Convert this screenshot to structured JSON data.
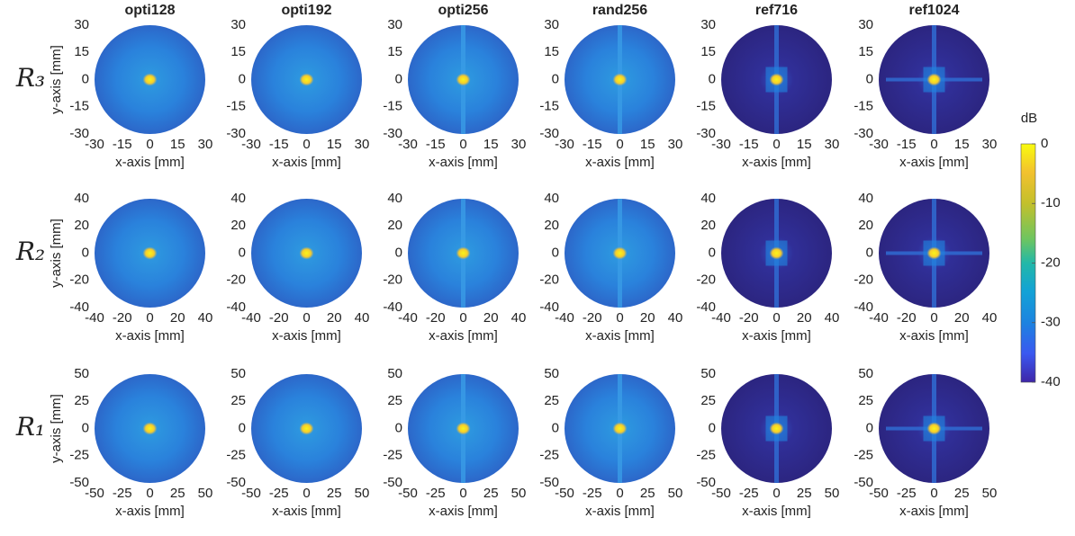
{
  "chart_data": {
    "type": "heatmap",
    "columns": [
      "opti128",
      "opti192",
      "opti256",
      "rand256",
      "ref716",
      "ref1024"
    ],
    "x_label": "x-axis [mm]",
    "y_label": "y-axis [mm]",
    "rows": [
      {
        "label": "R₃",
        "xlim": [
          -30,
          30
        ],
        "ylim": [
          -30,
          30
        ],
        "xticks": [
          -30,
          -15,
          0,
          15,
          30
        ],
        "yticks": [
          30,
          15,
          0,
          -15,
          -30
        ]
      },
      {
        "label": "R₂",
        "xlim": [
          -40,
          40
        ],
        "ylim": [
          -40,
          40
        ],
        "xticks": [
          -40,
          -20,
          0,
          20,
          40
        ],
        "yticks": [
          40,
          20,
          0,
          -20,
          -40
        ]
      },
      {
        "label": "R₁",
        "xlim": [
          -50,
          50
        ],
        "ylim": [
          -50,
          50
        ],
        "xticks": [
          -50,
          -25,
          0,
          25,
          50
        ],
        "yticks": [
          50,
          25,
          0,
          -25,
          -50
        ]
      }
    ],
    "colorbar": {
      "label": "dB",
      "lim": [
        -40,
        0
      ],
      "ticks": [
        0,
        -10,
        -20,
        -30,
        -40
      ]
    }
  }
}
